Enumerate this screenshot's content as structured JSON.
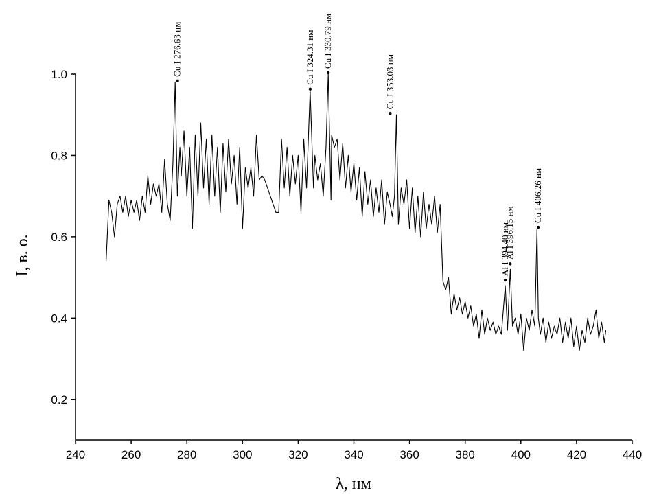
{
  "chart_data": {
    "type": "line",
    "title": "",
    "xlabel": "λ, нм",
    "ylabel": "I, в. о.",
    "xlim": [
      240,
      440
    ],
    "ylim": [
      0.1,
      1.0
    ],
    "x_ticks": [
      240,
      260,
      280,
      300,
      320,
      340,
      360,
      380,
      400,
      420,
      440
    ],
    "x_tick_labels": [
      "240",
      "260",
      "280",
      "300",
      "320",
      "340",
      "360",
      "380",
      "400",
      "420",
      "440"
    ],
    "y_ticks": [
      0.2,
      0.4,
      0.6,
      0.8,
      1.0
    ],
    "y_tick_labels": [
      "0.2",
      "0.4",
      "0.6",
      "0.8",
      "1.0"
    ],
    "grid": false,
    "line_color": "#000000",
    "series": [
      {
        "x": [
          251,
          252,
          253,
          254,
          255,
          256,
          257,
          258,
          259,
          260,
          261,
          262,
          263,
          264,
          265,
          266,
          267,
          268,
          269,
          270,
          271,
          272,
          273,
          274,
          275,
          275.8,
          276.6,
          277.5,
          278,
          279,
          280,
          281,
          282,
          283,
          284,
          285,
          286,
          287,
          288,
          289,
          290,
          291,
          292,
          293,
          294,
          295,
          296,
          297,
          298,
          299,
          300,
          301,
          302,
          303,
          304,
          305,
          306,
          307,
          308,
          310,
          312,
          313,
          314,
          315,
          316,
          317,
          318,
          319,
          320,
          321,
          322,
          323,
          324.3,
          325.5,
          326,
          327,
          328,
          329,
          330,
          330.8,
          331.8,
          332,
          333,
          334,
          335,
          336,
          337,
          338,
          339,
          340,
          341,
          342,
          343,
          344,
          345,
          346,
          347,
          348,
          349,
          350,
          351,
          352,
          353,
          353.8,
          354.6,
          355.3,
          356,
          357,
          358,
          359,
          360,
          361,
          362,
          363,
          364,
          365,
          366,
          367,
          368,
          369,
          370,
          371,
          372,
          373,
          374,
          375,
          376,
          377,
          378,
          379,
          380,
          381,
          382,
          383,
          384,
          385,
          386,
          387,
          388,
          389,
          390,
          391,
          392,
          393,
          394.4,
          395.2,
          396.2,
          397,
          398,
          399,
          400,
          401,
          402,
          403,
          404,
          405,
          405.8,
          406.3,
          407,
          408,
          409,
          410,
          411,
          412,
          413,
          414,
          415,
          416,
          417,
          418,
          419,
          420,
          421,
          422,
          423,
          424,
          425,
          426,
          427,
          428,
          429,
          430,
          430.5
        ],
        "y": [
          0.54,
          0.69,
          0.66,
          0.6,
          0.68,
          0.7,
          0.66,
          0.7,
          0.65,
          0.69,
          0.66,
          0.69,
          0.64,
          0.7,
          0.66,
          0.75,
          0.68,
          0.73,
          0.7,
          0.73,
          0.66,
          0.79,
          0.68,
          0.64,
          0.78,
          0.98,
          0.7,
          0.82,
          0.75,
          0.86,
          0.7,
          0.82,
          0.62,
          0.85,
          0.7,
          0.88,
          0.72,
          0.84,
          0.68,
          0.85,
          0.7,
          0.82,
          0.66,
          0.83,
          0.71,
          0.84,
          0.73,
          0.8,
          0.68,
          0.82,
          0.62,
          0.77,
          0.72,
          0.77,
          0.7,
          0.85,
          0.74,
          0.75,
          0.74,
          0.7,
          0.66,
          0.66,
          0.84,
          0.72,
          0.82,
          0.7,
          0.8,
          0.73,
          0.8,
          0.66,
          0.84,
          0.72,
          0.96,
          0.72,
          0.8,
          0.74,
          0.78,
          0.7,
          0.82,
          1.0,
          0.69,
          0.85,
          0.82,
          0.84,
          0.74,
          0.83,
          0.72,
          0.8,
          0.71,
          0.78,
          0.69,
          0.77,
          0.65,
          0.76,
          0.68,
          0.74,
          0.65,
          0.72,
          0.66,
          0.74,
          0.63,
          0.71,
          0.68,
          0.65,
          0.7,
          0.9,
          0.63,
          0.72,
          0.68,
          0.74,
          0.62,
          0.72,
          0.61,
          0.7,
          0.6,
          0.71,
          0.62,
          0.68,
          0.63,
          0.7,
          0.61,
          0.68,
          0.49,
          0.47,
          0.5,
          0.41,
          0.46,
          0.42,
          0.45,
          0.41,
          0.44,
          0.4,
          0.43,
          0.38,
          0.41,
          0.35,
          0.42,
          0.36,
          0.4,
          0.37,
          0.39,
          0.36,
          0.38,
          0.36,
          0.48,
          0.37,
          0.52,
          0.38,
          0.4,
          0.36,
          0.41,
          0.32,
          0.4,
          0.37,
          0.42,
          0.38,
          0.62,
          0.4,
          0.36,
          0.4,
          0.34,
          0.39,
          0.35,
          0.38,
          0.36,
          0.4,
          0.34,
          0.39,
          0.35,
          0.4,
          0.33,
          0.38,
          0.32,
          0.37,
          0.34,
          0.4,
          0.36,
          0.38,
          0.42,
          0.35,
          0.39,
          0.34,
          0.37
        ]
      }
    ],
    "annotations": [
      {
        "x": 276.63,
        "y": 0.98,
        "label": "Cu I 276.63 нм"
      },
      {
        "x": 324.31,
        "y": 0.96,
        "label": "Cu I 324.31 нм"
      },
      {
        "x": 330.79,
        "y": 1.0,
        "label": "Cu I 330.79 нм"
      },
      {
        "x": 353.03,
        "y": 0.9,
        "label": "Cu I 353.03 нм"
      },
      {
        "x": 394.4,
        "y": 0.49,
        "label": "Al I 394.40 нм"
      },
      {
        "x": 396.15,
        "y": 0.53,
        "label": "Al I 396.15 нм"
      },
      {
        "x": 406.26,
        "y": 0.62,
        "label": "Cu I 406.26 нм"
      }
    ]
  }
}
